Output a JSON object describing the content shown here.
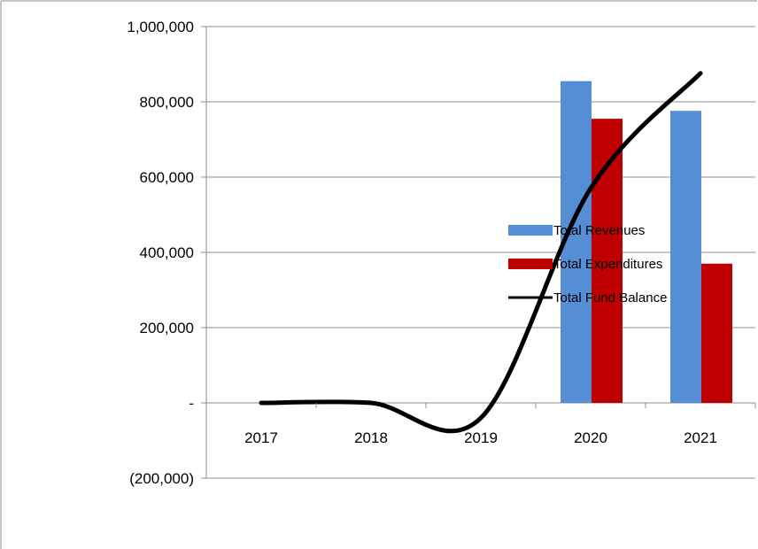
{
  "chart_data": {
    "type": "bar",
    "categories": [
      "2017",
      "2018",
      "2019",
      "2020",
      "2021"
    ],
    "series": [
      {
        "name": "Total Revenues",
        "kind": "bar",
        "color": "#558ED5",
        "values": [
          0,
          0,
          0,
          855000,
          776000
        ]
      },
      {
        "name": "Total Expenditures",
        "kind": "bar",
        "color": "#C00000",
        "values": [
          0,
          0,
          0,
          755000,
          370000
        ]
      },
      {
        "name": "Total Fund Balance",
        "kind": "line",
        "color": "#000000",
        "values": [
          0,
          0,
          -40000,
          570000,
          876000
        ]
      }
    ],
    "y_ticks": [
      {
        "value": 1000000,
        "label": "1,000,000"
      },
      {
        "value": 800000,
        "label": "800,000"
      },
      {
        "value": 600000,
        "label": "600,000"
      },
      {
        "value": 400000,
        "label": "400,000"
      },
      {
        "value": 200000,
        "label": "200,000"
      },
      {
        "value": 0,
        "label": "-"
      },
      {
        "value": -200000,
        "label": "(200,000)"
      }
    ],
    "ylim": [
      -200000,
      1000000
    ],
    "grid": true,
    "legend_position": "right",
    "title": "",
    "xlabel": "",
    "ylabel": ""
  }
}
